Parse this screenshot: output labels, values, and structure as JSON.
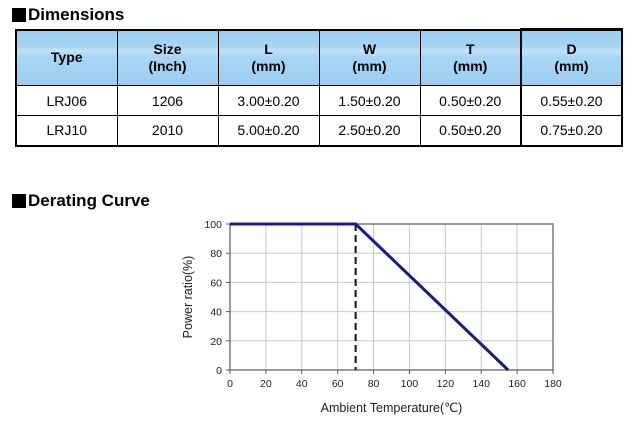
{
  "sections": {
    "dimensions": {
      "title": "Dimensions"
    },
    "derating": {
      "title": "Derating Curve"
    }
  },
  "dimensions_table": {
    "header_bg": "#a6d4f4",
    "columns": [
      {
        "title": "Type",
        "unit": ""
      },
      {
        "title": "Size",
        "unit": "(Inch)"
      },
      {
        "title": "L",
        "unit": "(mm)"
      },
      {
        "title": "W",
        "unit": "(mm)"
      },
      {
        "title": "T",
        "unit": "(mm)"
      },
      {
        "title": "D",
        "unit": "(mm)"
      }
    ],
    "rows": [
      [
        "LRJ06",
        "1206",
        "3.00±0.20",
        "1.50±0.20",
        "0.50±0.20",
        "0.55±0.20"
      ],
      [
        "LRJ10",
        "2010",
        "5.00±0.20",
        "2.50±0.20",
        "0.50±0.20",
        "0.75±0.20"
      ]
    ]
  },
  "chart_data": {
    "type": "line",
    "title": "Derating Curve",
    "xlabel": "Ambient Temperature(℃)",
    "ylabel": "Power ratio(%)",
    "xlim": [
      0,
      180
    ],
    "ylim": [
      0,
      100
    ],
    "xticks": [
      0,
      20,
      40,
      60,
      80,
      100,
      120,
      140,
      160,
      180
    ],
    "yticks": [
      0,
      20,
      40,
      60,
      80,
      100
    ],
    "grid": true,
    "legend": false,
    "series": [
      {
        "name": "power-ratio",
        "points": [
          [
            0,
            100
          ],
          [
            70,
            100
          ],
          [
            155,
            0
          ]
        ],
        "color": "#1a1a8c"
      }
    ],
    "marker": {
      "x": 70,
      "style": "dashed-vertical",
      "color": "#111111"
    },
    "grid_color": "#c9c9c9",
    "frame_color": "#7a7a7a",
    "tick_color": "#555555"
  }
}
